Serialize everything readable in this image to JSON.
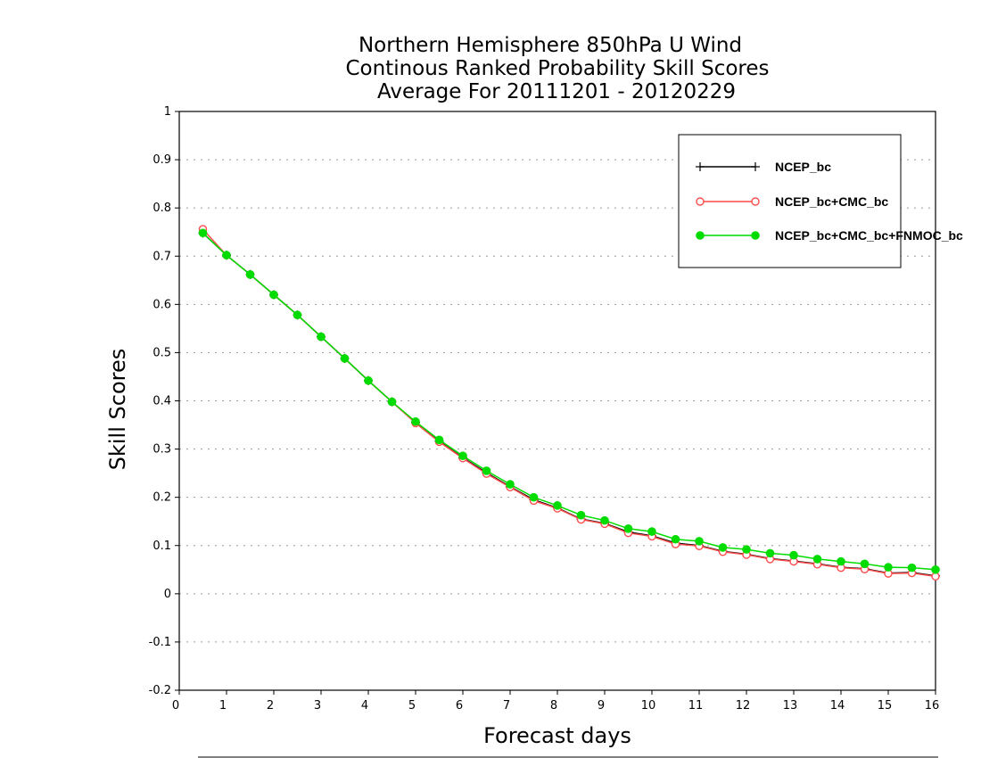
{
  "chart_data": {
    "type": "line",
    "title": [
      "Northern Hemisphere 850hPa U Wind",
      "Continous Ranked Probability Skill Scores",
      "Average For 20111201 - 20120229"
    ],
    "xlabel": "Forecast days",
    "ylabel": "Skill Scores",
    "xlim": [
      0,
      16
    ],
    "ylim": [
      -0.2,
      1
    ],
    "xticks": [
      0,
      1,
      2,
      3,
      4,
      5,
      6,
      7,
      8,
      9,
      10,
      11,
      12,
      13,
      14,
      15,
      16
    ],
    "yticks": [
      -0.2,
      -0.1,
      0,
      0.1,
      0.2,
      0.3,
      0.4,
      0.5,
      0.6,
      0.7,
      0.8,
      0.9,
      1
    ],
    "ytick_labels": [
      "-0.2",
      "-0.1",
      "0",
      "0.1",
      "0.2",
      "0.3",
      "0.4",
      "0.5",
      "0.6",
      "0.7",
      "0.8",
      "0.9",
      "1"
    ],
    "grid": "horizontal dotted",
    "legend_position": "top-right",
    "x": [
      0.5,
      1,
      1.5,
      2,
      2.5,
      3,
      3.5,
      4,
      4.5,
      5,
      5.5,
      6,
      6.5,
      7,
      7.5,
      8,
      8.5,
      9,
      9.5,
      10,
      10.5,
      11,
      11.5,
      12,
      12.5,
      13,
      13.5,
      14,
      14.5,
      15,
      15.5,
      16
    ],
    "series": [
      {
        "name": "NCEP_bc",
        "color": "#000000",
        "marker": "plus",
        "values": [
          0.748,
          0.702,
          0.662,
          0.62,
          0.578,
          0.533,
          0.488,
          0.442,
          0.398,
          0.355,
          0.316,
          0.282,
          0.251,
          0.222,
          0.195,
          0.178,
          0.155,
          0.146,
          0.128,
          0.12,
          0.105,
          0.1,
          0.088,
          0.082,
          0.073,
          0.068,
          0.062,
          0.055,
          0.052,
          0.043,
          0.044,
          0.037
        ]
      },
      {
        "name": "NCEP_bc+CMC_bc",
        "color": "#ff4c4c",
        "marker": "open-circle",
        "values": [
          0.756,
          0.702,
          0.662,
          0.62,
          0.578,
          0.533,
          0.488,
          0.442,
          0.398,
          0.354,
          0.315,
          0.281,
          0.249,
          0.221,
          0.193,
          0.177,
          0.154,
          0.145,
          0.126,
          0.119,
          0.103,
          0.099,
          0.087,
          0.081,
          0.072,
          0.067,
          0.061,
          0.054,
          0.051,
          0.042,
          0.043,
          0.036
        ]
      },
      {
        "name": "NCEP_bc+CMC_bc+FNMOC_bc",
        "color": "#00dc00",
        "marker": "filled-circle",
        "values": [
          0.748,
          0.702,
          0.662,
          0.62,
          0.578,
          0.533,
          0.488,
          0.442,
          0.398,
          0.357,
          0.319,
          0.286,
          0.255,
          0.227,
          0.2,
          0.183,
          0.163,
          0.152,
          0.135,
          0.129,
          0.113,
          0.109,
          0.096,
          0.092,
          0.084,
          0.08,
          0.072,
          0.067,
          0.062,
          0.055,
          0.054,
          0.05
        ]
      }
    ]
  }
}
